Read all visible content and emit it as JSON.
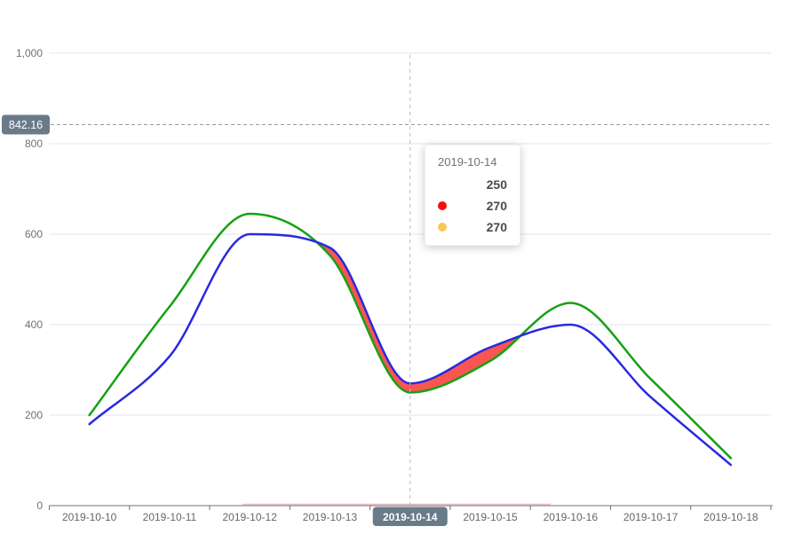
{
  "chart_data": {
    "type": "line",
    "x": [
      "2019-10-10",
      "2019-10-11",
      "2019-10-12",
      "2019-10-13",
      "2019-10-14",
      "2019-10-15",
      "2019-10-16",
      "2019-10-17",
      "2019-10-18"
    ],
    "series": [
      {
        "name": "green-series",
        "color": "#14a114",
        "values": [
          200,
          440,
          645,
          553,
          250,
          320,
          448,
          280,
          105
        ]
      },
      {
        "name": "blue-series",
        "color": "#2929e0",
        "values": [
          180,
          330,
          600,
          570,
          270,
          350,
          400,
          240,
          90
        ]
      },
      {
        "name": "difference-band",
        "type": "band-fill",
        "color": "#fa5551",
        "rule": "filled where blue-series exceeds green-series"
      }
    ],
    "ylim": [
      0,
      1000
    ],
    "yticks": [
      {
        "v": 0,
        "label": "0"
      },
      {
        "v": 200,
        "label": "200"
      },
      {
        "v": 400,
        "label": "400"
      },
      {
        "v": 600,
        "label": "600"
      },
      {
        "v": 800,
        "label": "800"
      },
      {
        "v": 1000,
        "label": "1,000"
      }
    ],
    "grid": true,
    "legend_position": "none",
    "markline": {
      "value": 842.16,
      "label": "842.16"
    },
    "axis_pointer": {
      "category": "2019-10-14",
      "index": 4
    }
  },
  "tooltip": {
    "title": "2019-10-14",
    "rows": [
      {
        "marker_color": null,
        "value": "250"
      },
      {
        "marker_color": "#f90d0d",
        "value": "270"
      },
      {
        "marker_color": "#fac858",
        "value": "270"
      }
    ]
  },
  "colors": {
    "grid_line": "#e0e6f1",
    "axis_line": "#6e7079",
    "y_label": "#6e7079",
    "x_label": "#62666d",
    "pointer_dash": "#b7bcc7",
    "markline_dash": "#9a9ea6",
    "badge_bg": "#697a89",
    "badge_text": "#ffffff",
    "highlight_bg": "#697a89",
    "highlight_text": "#ffffff",
    "axis_underline_pink": "#f3c0c1"
  }
}
